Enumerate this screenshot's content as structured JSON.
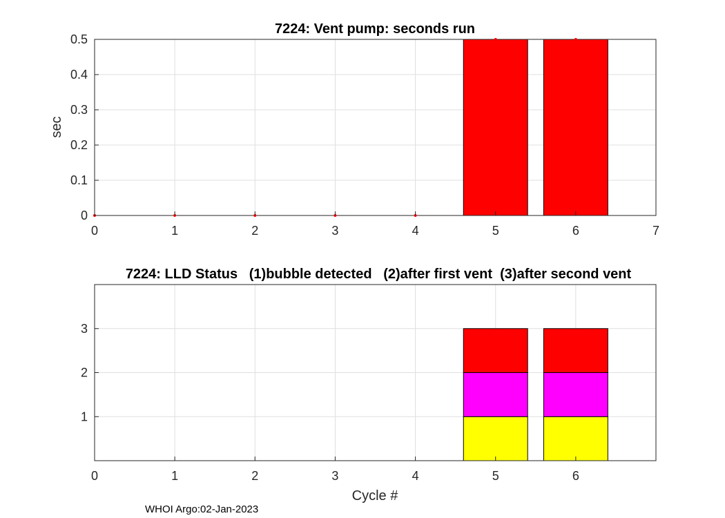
{
  "chart_data": [
    {
      "type": "bar",
      "title": "7224: Vent pump: seconds run",
      "xlabel": "",
      "ylabel": "sec",
      "xlim": [
        0,
        7
      ],
      "ylim": [
        0,
        0.5
      ],
      "xticks": [
        "0",
        "1",
        "2",
        "3",
        "4",
        "5",
        "6",
        "7"
      ],
      "yticks": [
        "0",
        "0.1",
        "0.2",
        "0.3",
        "0.4",
        "0.5"
      ],
      "x": [
        0,
        1,
        2,
        3,
        4,
        5,
        6
      ],
      "values": [
        0,
        0,
        0,
        0,
        0,
        0.5,
        0.5
      ],
      "bar_color": "#ff0000",
      "marker_color": "#ff0000"
    },
    {
      "type": "bar",
      "stacked": true,
      "title": "7224: LLD Status   (1)bubble detected   (2)after first vent  (3)after second vent",
      "xlabel": "Cycle #",
      "ylabel": "",
      "xlim": [
        0,
        7
      ],
      "ylim": [
        0,
        4
      ],
      "xticks": [
        "0",
        "1",
        "2",
        "3",
        "4",
        "5",
        "6"
      ],
      "yticks": [
        "1",
        "2",
        "3"
      ],
      "x": [
        5,
        6
      ],
      "series": [
        {
          "name": "(1)bubble detected",
          "values": [
            1,
            1
          ],
          "color": "#ffff00"
        },
        {
          "name": "(2)after first vent",
          "values": [
            1,
            1
          ],
          "color": "#ff00ff"
        },
        {
          "name": "(3)after second vent",
          "values": [
            1,
            1
          ],
          "color": "#ff0000"
        }
      ]
    }
  ],
  "footer": "WHOI Argo:02-Jan-2023"
}
